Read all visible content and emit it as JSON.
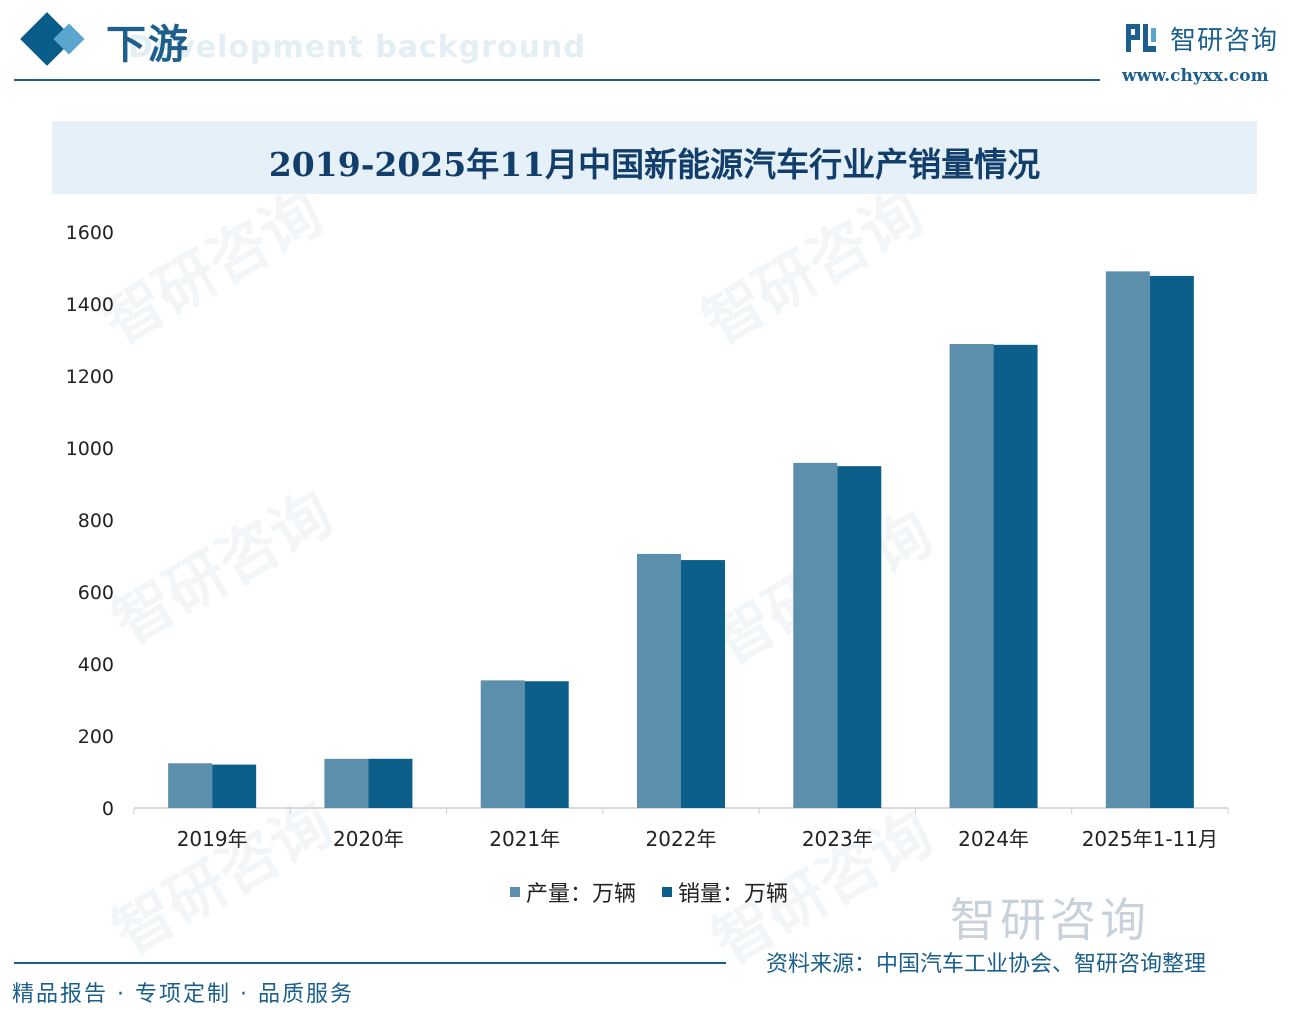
{
  "header": {
    "section_title": "下游",
    "section_subtitle": "Development background",
    "brand_name": "智研咨询",
    "brand_url": "www.chyxx.com"
  },
  "watermark_text": "智研咨询",
  "chart_data": {
    "type": "bar",
    "title": "2019-2025年11月中国新能源汽车行业产销量情况",
    "categories": [
      "2019年",
      "2020年",
      "2021年",
      "2022年",
      "2023年",
      "2024年",
      "2025年1-11月"
    ],
    "series": [
      {
        "name": "产量：万辆",
        "color": "#5b8fac",
        "values": [
          124.2,
          136.6,
          354.5,
          705.8,
          958.7,
          1288.8,
          1490.7
        ]
      },
      {
        "name": "销量：万辆",
        "color": "#0b5f8a",
        "values": [
          120.6,
          136.7,
          352.1,
          688.7,
          949.5,
          1286.6,
          1478.0
        ]
      }
    ],
    "ylim": [
      0,
      1600
    ],
    "yticks": [
      0,
      200,
      400,
      600,
      800,
      1000,
      1200,
      1400,
      1600
    ],
    "grid": false,
    "legend_position": "bottom"
  },
  "footer": {
    "brand_large": "智研咨询",
    "source": "资料来源：中国汽车工业协会、智研咨询整理",
    "tagline": "精品报告 · 专项定制 · 品质服务"
  }
}
